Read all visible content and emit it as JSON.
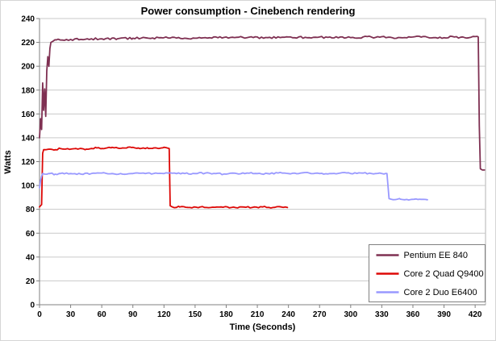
{
  "chart_data": {
    "type": "line",
    "title": "Power consumption - Cinebench rendering",
    "xlabel": "Time (Seconds)",
    "ylabel": "Watts",
    "xlim": [
      0,
      430
    ],
    "ylim": [
      0,
      240
    ],
    "xticks": [
      0,
      30,
      60,
      90,
      120,
      150,
      180,
      210,
      240,
      270,
      300,
      330,
      360,
      390,
      420
    ],
    "yticks": [
      0,
      20,
      40,
      60,
      80,
      100,
      120,
      140,
      160,
      180,
      200,
      220,
      240
    ],
    "grid": "horizontal-only",
    "legend": {
      "position": "inside-bottom-right"
    },
    "series": [
      {
        "name": "Pentium EE 840",
        "color": "#7f3052",
        "noise": 0.8,
        "points": [
          [
            0,
            140
          ],
          [
            1,
            156
          ],
          [
            2,
            147
          ],
          [
            3,
            186
          ],
          [
            4,
            163
          ],
          [
            5,
            181
          ],
          [
            6,
            158
          ],
          [
            7,
            196
          ],
          [
            8,
            208
          ],
          [
            9,
            200
          ],
          [
            10,
            215
          ],
          [
            11,
            220
          ],
          [
            13,
            221
          ],
          [
            16,
            222
          ],
          [
            20,
            222
          ],
          [
            30,
            222.5
          ],
          [
            40,
            222.5
          ],
          [
            50,
            223
          ],
          [
            60,
            223
          ],
          [
            75,
            223
          ],
          [
            90,
            223.5
          ],
          [
            105,
            223.5
          ],
          [
            120,
            224
          ],
          [
            140,
            223.5
          ],
          [
            160,
            224
          ],
          [
            180,
            224.5
          ],
          [
            200,
            224
          ],
          [
            220,
            224
          ],
          [
            240,
            224.5
          ],
          [
            260,
            224
          ],
          [
            280,
            224.5
          ],
          [
            300,
            224
          ],
          [
            320,
            224.5
          ],
          [
            340,
            224
          ],
          [
            360,
            224.5
          ],
          [
            380,
            224
          ],
          [
            400,
            224.5
          ],
          [
            410,
            224
          ],
          [
            418,
            225
          ],
          [
            423,
            224.5
          ],
          [
            424,
            150
          ],
          [
            425,
            114
          ],
          [
            427,
            113
          ],
          [
            429,
            113
          ]
        ]
      },
      {
        "name": "Core 2 Quad Q9400",
        "color": "#dd0806",
        "noise": 0.6,
        "points": [
          [
            0,
            82
          ],
          [
            1,
            83
          ],
          [
            2,
            84
          ],
          [
            3,
            127
          ],
          [
            4,
            130
          ],
          [
            6,
            130
          ],
          [
            10,
            130.5
          ],
          [
            15,
            130
          ],
          [
            20,
            131
          ],
          [
            25,
            130.5
          ],
          [
            30,
            130.5
          ],
          [
            35,
            131
          ],
          [
            40,
            131
          ],
          [
            45,
            130.5
          ],
          [
            50,
            131
          ],
          [
            55,
            131.5
          ],
          [
            60,
            131
          ],
          [
            65,
            131.5
          ],
          [
            70,
            132
          ],
          [
            75,
            131.5
          ],
          [
            80,
            131.5
          ],
          [
            85,
            132
          ],
          [
            90,
            132
          ],
          [
            95,
            131.5
          ],
          [
            100,
            131.5
          ],
          [
            105,
            131
          ],
          [
            110,
            131.5
          ],
          [
            115,
            131
          ],
          [
            120,
            132
          ],
          [
            123,
            131.5
          ],
          [
            125,
            131
          ],
          [
            126,
            83
          ],
          [
            128,
            82
          ],
          [
            135,
            82
          ],
          [
            145,
            81.5
          ],
          [
            155,
            82
          ],
          [
            165,
            81.5
          ],
          [
            175,
            82
          ],
          [
            185,
            81.5
          ],
          [
            195,
            82
          ],
          [
            205,
            81.5
          ],
          [
            215,
            82
          ],
          [
            225,
            81.5
          ],
          [
            233,
            82
          ],
          [
            239,
            81.5
          ]
        ]
      },
      {
        "name": "Core 2 Duo E6400",
        "color": "#9999ff",
        "noise": 0.6,
        "points": [
          [
            0,
            98
          ],
          [
            1,
            104
          ],
          [
            2,
            108
          ],
          [
            3,
            110
          ],
          [
            5,
            109.5
          ],
          [
            10,
            110
          ],
          [
            15,
            109.5
          ],
          [
            20,
            110
          ],
          [
            30,
            110
          ],
          [
            40,
            109.5
          ],
          [
            50,
            110
          ],
          [
            60,
            110.5
          ],
          [
            70,
            110
          ],
          [
            80,
            109.5
          ],
          [
            90,
            110
          ],
          [
            100,
            110.5
          ],
          [
            110,
            110
          ],
          [
            120,
            110
          ],
          [
            130,
            110.5
          ],
          [
            140,
            110
          ],
          [
            150,
            110
          ],
          [
            160,
            110.5
          ],
          [
            170,
            110
          ],
          [
            180,
            109.5
          ],
          [
            190,
            110
          ],
          [
            200,
            110.5
          ],
          [
            210,
            110
          ],
          [
            220,
            110
          ],
          [
            230,
            110.5
          ],
          [
            240,
            110
          ],
          [
            250,
            110
          ],
          [
            260,
            110.5
          ],
          [
            270,
            110
          ],
          [
            280,
            110
          ],
          [
            290,
            110.5
          ],
          [
            300,
            110
          ],
          [
            310,
            110.5
          ],
          [
            320,
            110
          ],
          [
            330,
            110
          ],
          [
            335,
            110
          ],
          [
            337,
            89
          ],
          [
            339,
            88.5
          ],
          [
            348,
            88.5
          ],
          [
            357,
            88
          ],
          [
            366,
            88.5
          ],
          [
            374,
            88
          ]
        ]
      }
    ]
  },
  "colors": {
    "plot_bg": "#ffffff",
    "plot_border": "#b3b3b3",
    "grid": "#c9c9c9",
    "axis": "#808080",
    "legend_border": "#808080",
    "legend_bg": "#ffffff",
    "text": "#000000"
  }
}
